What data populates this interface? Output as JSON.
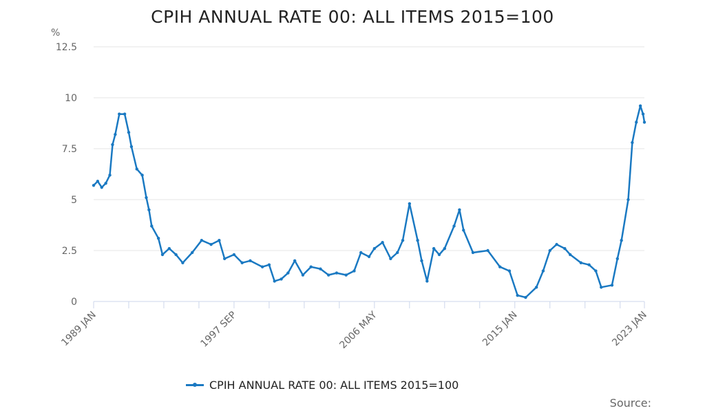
{
  "chart_data": {
    "type": "line",
    "title": "CPIH ANNUAL RATE 00: ALL ITEMS 2015=100",
    "ylabel": "%",
    "xlabel": "",
    "ylim": [
      0,
      12.5
    ],
    "yticks": [
      "0",
      "2.5",
      "5",
      "7.5",
      "10",
      "12.5"
    ],
    "xlim": [
      "1989-01",
      "2023-01"
    ],
    "xtick_labels": [
      "1989 JAN",
      "1997 SEP",
      "2006 MAY",
      "2015 JAN",
      "2023 JAN"
    ],
    "grid": true,
    "legend_position": "bottom",
    "color": "#1a79c2",
    "series": [
      {
        "name": "CPIH ANNUAL RATE 00: ALL ITEMS 2015=100",
        "points": [
          [
            "1989-01",
            5.7
          ],
          [
            "1989-04",
            5.9
          ],
          [
            "1989-07",
            5.6
          ],
          [
            "1989-10",
            5.8
          ],
          [
            "1990-01",
            6.2
          ],
          [
            "1990-03",
            7.7
          ],
          [
            "1990-05",
            8.2
          ],
          [
            "1990-08",
            9.2
          ],
          [
            "1990-12",
            9.2
          ],
          [
            "1991-03",
            8.3
          ],
          [
            "1991-05",
            7.6
          ],
          [
            "1991-09",
            6.5
          ],
          [
            "1992-01",
            6.2
          ],
          [
            "1992-04",
            5.1
          ],
          [
            "1992-06",
            4.5
          ],
          [
            "1992-08",
            3.7
          ],
          [
            "1993-01",
            3.1
          ],
          [
            "1993-04",
            2.3
          ],
          [
            "1993-09",
            2.6
          ],
          [
            "1994-02",
            2.3
          ],
          [
            "1994-07",
            1.9
          ],
          [
            "1995-02",
            2.4
          ],
          [
            "1995-09",
            3.0
          ],
          [
            "1996-04",
            2.8
          ],
          [
            "1996-10",
            3.0
          ],
          [
            "1997-02",
            2.1
          ],
          [
            "1997-09",
            2.3
          ],
          [
            "1998-03",
            1.9
          ],
          [
            "1998-09",
            2.0
          ],
          [
            "1999-06",
            1.7
          ],
          [
            "1999-11",
            1.8
          ],
          [
            "2000-03",
            1.0
          ],
          [
            "2000-08",
            1.1
          ],
          [
            "2001-01",
            1.4
          ],
          [
            "2001-06",
            2.0
          ],
          [
            "2001-12",
            1.3
          ],
          [
            "2002-06",
            1.7
          ],
          [
            "2003-01",
            1.6
          ],
          [
            "2003-07",
            1.3
          ],
          [
            "2004-01",
            1.4
          ],
          [
            "2004-08",
            1.3
          ],
          [
            "2005-02",
            1.5
          ],
          [
            "2005-07",
            2.4
          ],
          [
            "2006-01",
            2.2
          ],
          [
            "2006-05",
            2.6
          ],
          [
            "2006-11",
            2.9
          ],
          [
            "2007-05",
            2.1
          ],
          [
            "2007-10",
            2.4
          ],
          [
            "2008-02",
            3.0
          ],
          [
            "2008-07",
            4.8
          ],
          [
            "2009-01",
            3.0
          ],
          [
            "2009-04",
            2.0
          ],
          [
            "2009-08",
            1.0
          ],
          [
            "2010-01",
            2.6
          ],
          [
            "2010-05",
            2.3
          ],
          [
            "2010-09",
            2.6
          ],
          [
            "2011-04",
            3.7
          ],
          [
            "2011-08",
            4.5
          ],
          [
            "2011-11",
            3.5
          ],
          [
            "2012-06",
            2.4
          ],
          [
            "2013-05",
            2.5
          ],
          [
            "2014-02",
            1.7
          ],
          [
            "2014-09",
            1.5
          ],
          [
            "2015-03",
            0.3
          ],
          [
            "2015-09",
            0.2
          ],
          [
            "2016-05",
            0.7
          ],
          [
            "2016-10",
            1.5
          ],
          [
            "2017-03",
            2.5
          ],
          [
            "2017-08",
            2.8
          ],
          [
            "2018-02",
            2.6
          ],
          [
            "2018-06",
            2.3
          ],
          [
            "2019-02",
            1.9
          ],
          [
            "2019-08",
            1.8
          ],
          [
            "2020-01",
            1.5
          ],
          [
            "2020-05",
            0.7
          ],
          [
            "2021-01",
            0.8
          ],
          [
            "2021-05",
            2.1
          ],
          [
            "2021-08",
            3.0
          ],
          [
            "2022-01",
            5.0
          ],
          [
            "2022-04",
            7.8
          ],
          [
            "2022-07",
            8.8
          ],
          [
            "2022-10",
            9.6
          ],
          [
            "2022-12",
            9.2
          ],
          [
            "2023-01",
            8.8
          ]
        ]
      }
    ],
    "source_label": "Source:"
  }
}
